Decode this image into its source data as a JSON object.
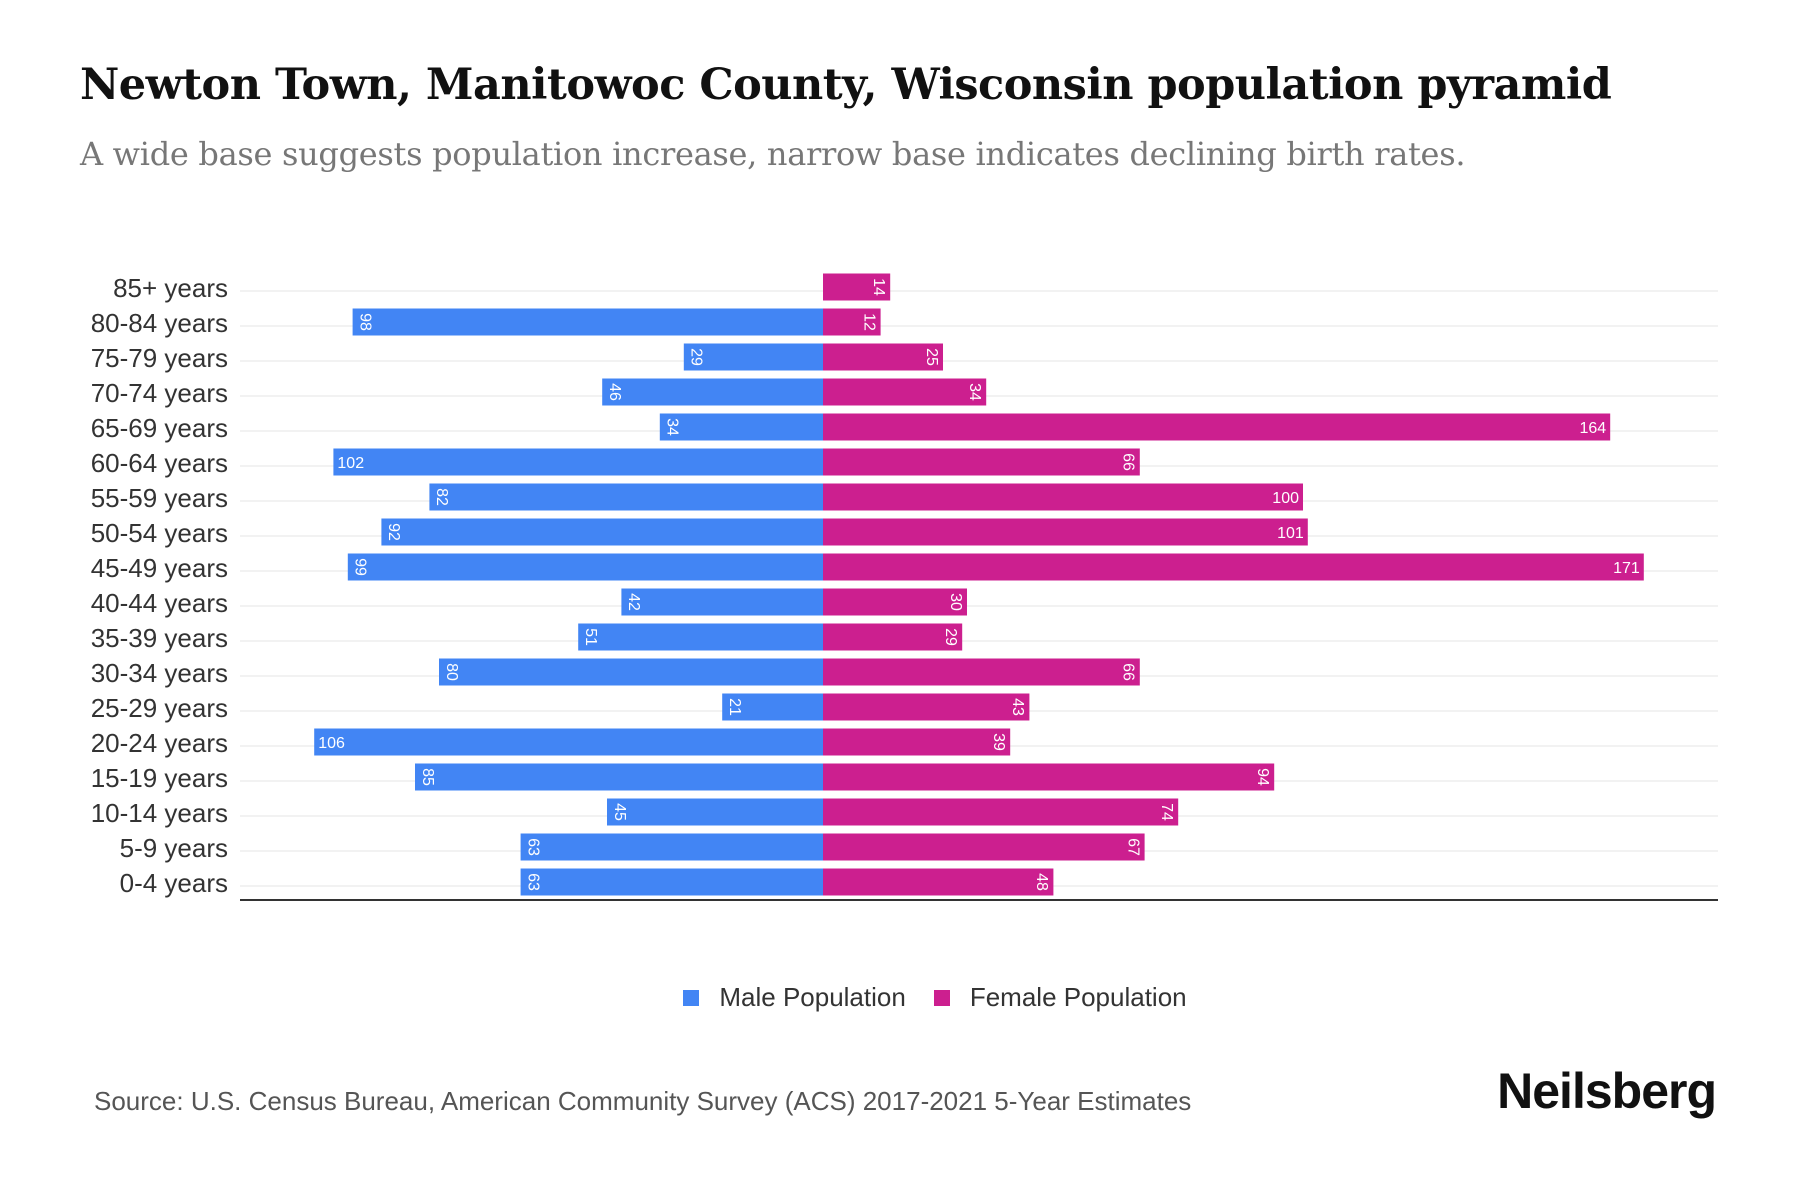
{
  "title": "Newton Town, Manitowoc County, Wisconsin population pyramid",
  "subtitle": "A wide base suggests population increase, narrow base indicates declining birth rates.",
  "source": "Source: U.S. Census Bureau, American Community Survey (ACS) 2017-2021 5-Year Estimates",
  "logo": "Neilsberg",
  "colors": {
    "male": "#4285F4",
    "female": "#CC1F8F"
  },
  "chart_data": {
    "type": "bar",
    "orientation": "horizontal-pyramid",
    "title": "Newton Town, Manitowoc County, Wisconsin population pyramid",
    "categories": [
      "85+ years",
      "80-84 years",
      "75-79 years",
      "70-74 years",
      "65-69 years",
      "60-64 years",
      "55-59 years",
      "50-54 years",
      "45-49 years",
      "40-44 years",
      "35-39 years",
      "30-34 years",
      "25-29 years",
      "20-24 years",
      "15-19 years",
      "10-14 years",
      "5-9 years",
      "0-4 years"
    ],
    "series": [
      {
        "name": "Male Population",
        "values": [
          0,
          98,
          29,
          46,
          34,
          102,
          82,
          92,
          99,
          42,
          51,
          80,
          21,
          106,
          85,
          45,
          63,
          63
        ]
      },
      {
        "name": "Female Population",
        "values": [
          14,
          12,
          25,
          34,
          164,
          66,
          100,
          101,
          171,
          30,
          29,
          66,
          43,
          39,
          94,
          74,
          67,
          48
        ]
      }
    ],
    "xlim": [
      -106,
      171
    ],
    "grid": true,
    "legend": "bottom-center"
  }
}
